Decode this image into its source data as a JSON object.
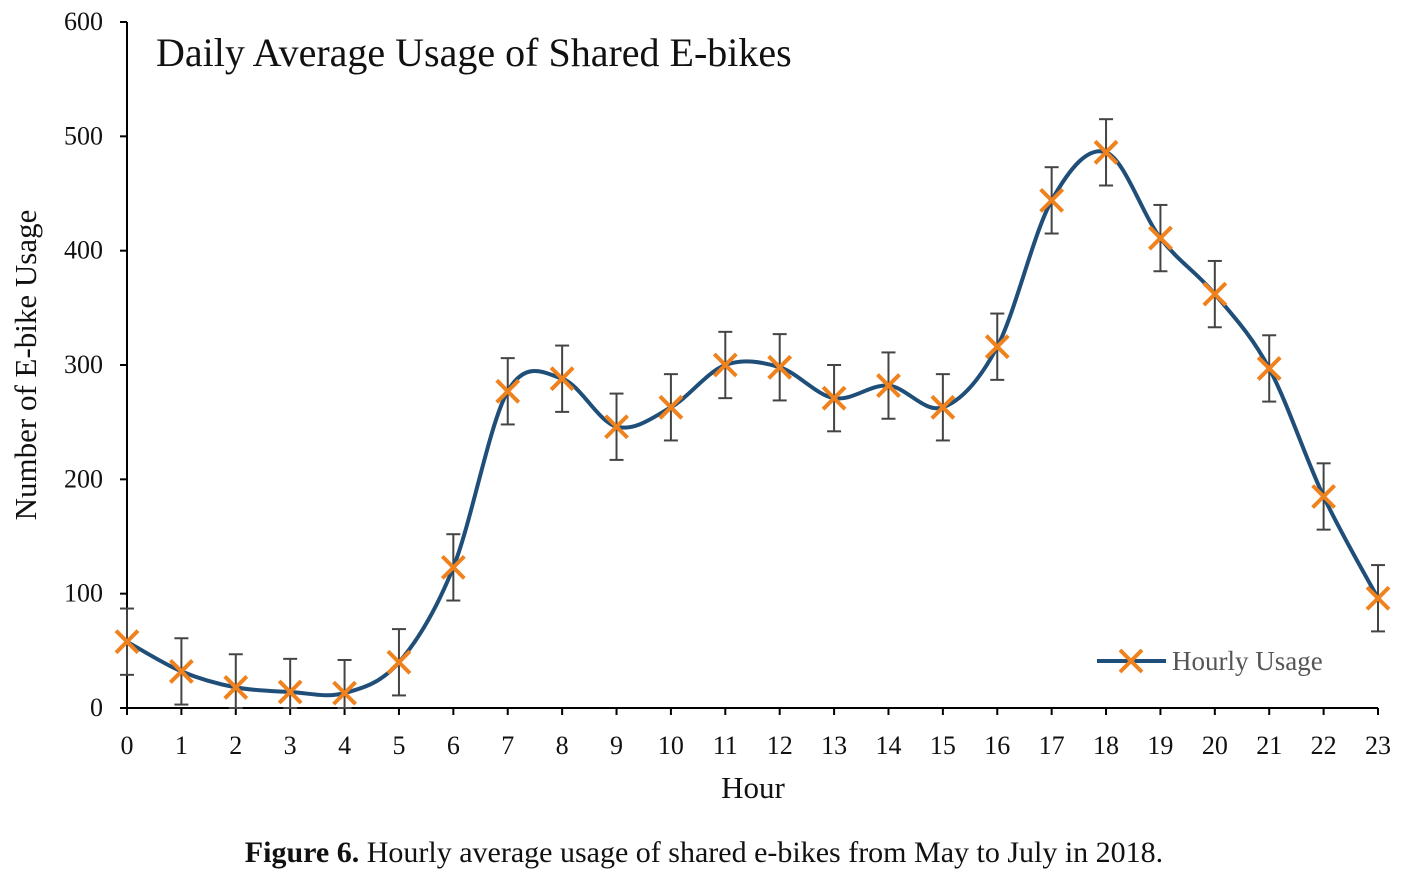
{
  "chart_data": {
    "type": "line",
    "title": "Daily Average Usage of Shared E-bikes",
    "xlabel": "Hour",
    "ylabel": "Number of E-bike Usage",
    "xlim": [
      0,
      23
    ],
    "ylim": [
      0,
      600
    ],
    "yticks": [
      0,
      100,
      200,
      300,
      400,
      500,
      600
    ],
    "categories": [
      "0",
      "1",
      "2",
      "3",
      "4",
      "5",
      "6",
      "7",
      "8",
      "9",
      "10",
      "11",
      "12",
      "13",
      "14",
      "15",
      "16",
      "17",
      "18",
      "19",
      "20",
      "21",
      "22",
      "23"
    ],
    "series": [
      {
        "name": "Hourly Usage",
        "values": [
          58,
          32,
          18,
          14,
          13,
          40,
          123,
          277,
          288,
          246,
          263,
          300,
          298,
          271,
          282,
          263,
          316,
          444,
          486,
          411,
          362,
          297,
          185,
          96
        ],
        "error": 29,
        "line_color": "#1f4e79",
        "marker": "x",
        "marker_color": "#f0821e"
      }
    ],
    "legend": "bottom-right",
    "grid": false
  },
  "caption": {
    "label": "Figure 6.",
    "text": "Hourly average usage of shared e-bikes from May to July in 2018."
  }
}
